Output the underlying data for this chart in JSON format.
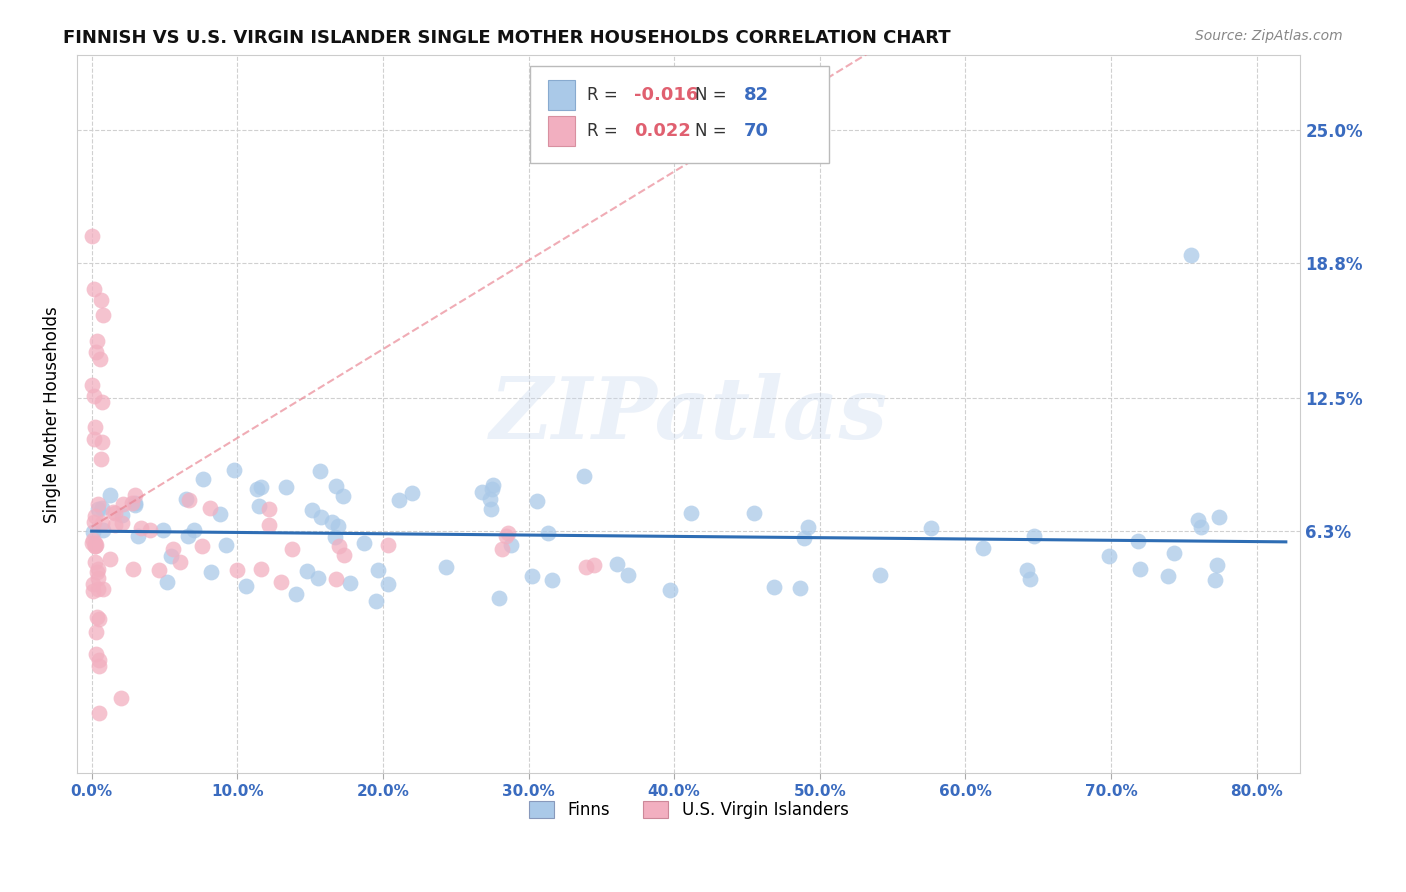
{
  "title": "FINNISH VS U.S. VIRGIN ISLANDER SINGLE MOTHER HOUSEHOLDS CORRELATION CHART",
  "source": "Source: ZipAtlas.com",
  "ylabel": "Single Mother Households",
  "xlabel_ticks": [
    "0.0%",
    "10.0%",
    "20.0%",
    "30.0%",
    "40.0%",
    "50.0%",
    "60.0%",
    "70.0%",
    "80.0%"
  ],
  "ytick_labels": [
    "25.0%",
    "18.8%",
    "12.5%",
    "6.3%"
  ],
  "ytick_values": [
    0.25,
    0.188,
    0.125,
    0.063
  ],
  "xlim": [
    -0.01,
    0.83
  ],
  "ylim": [
    -0.05,
    0.285
  ],
  "finn_R": "-0.016",
  "finn_N": "82",
  "usvi_R": "0.022",
  "usvi_N": "70",
  "finn_color": "#aac9e8",
  "usvi_color": "#f2afc0",
  "finn_line_color": "#2e6db4",
  "usvi_line_color": "#e8808e",
  "watermark_text": "ZIPatlas",
  "background_color": "#ffffff",
  "grid_color": "#d0d0d0",
  "finn_line_y0": 0.063,
  "finn_line_y1": 0.058,
  "usvi_line_y0": 0.063,
  "usvi_line_y1": 0.21,
  "usvi_line_x1": 0.35,
  "title_fontsize": 13,
  "source_fontsize": 10,
  "ylabel_fontsize": 12,
  "tick_fontsize": 11,
  "legend_fontsize": 12
}
